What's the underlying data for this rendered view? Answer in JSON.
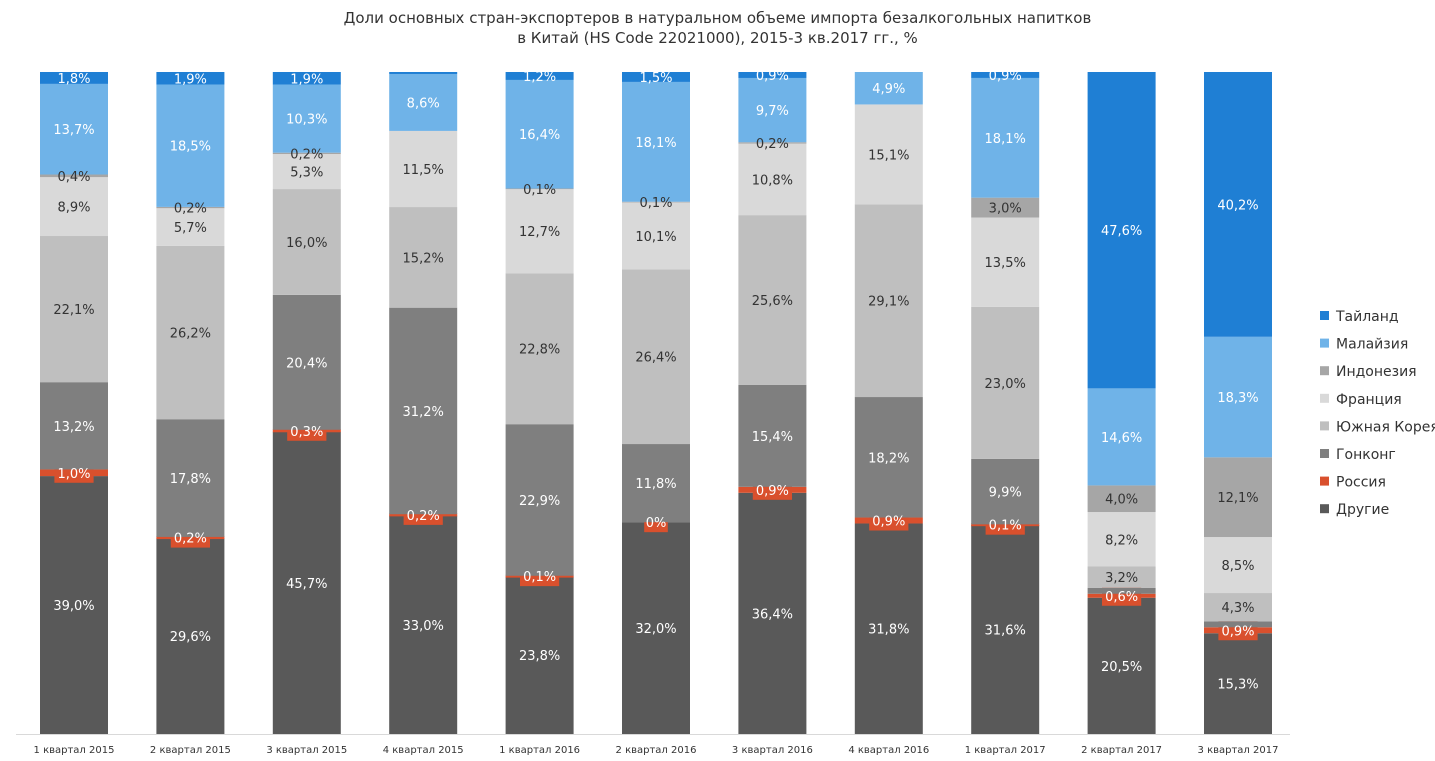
{
  "chart_data": {
    "type": "bar",
    "stacked": true,
    "title": "Доли основных стран-экспортеров в натуральном объеме импорта безалкогольных напитков",
    "subtitle": "в Китай (HS Code 22021000),  2015-3  кв.2017  гг., %",
    "categories": [
      "1 квартал  2015",
      "2 квартал  2015",
      "3 квартал  2015",
      "4 квартал  2015",
      "1 квартал  2016",
      "2 квартал  2016",
      "3 квартал  2016",
      "4 квартал  2016",
      "1 квартал  2017",
      "2 квартал  2017",
      "3 квартал  2017"
    ],
    "legend_position": "right",
    "ylim": [
      0,
      100
    ],
    "series": [
      {
        "name": "Другие",
        "color": "#595959",
        "values": [
          39.0,
          29.6,
          45.7,
          33.0,
          23.8,
          32.0,
          36.4,
          31.8,
          31.6,
          20.5,
          15.3
        ],
        "labels": [
          "39,0%",
          "29,6%",
          "45,7%",
          "33,0%",
          "23,8%",
          "32,0%",
          "36,4%",
          "31,8%",
          "31,6%",
          "20,5%",
          "15,3%"
        ]
      },
      {
        "name": "Россия",
        "color": "#D9502D",
        "values": [
          1.0,
          0.2,
          0.3,
          0.2,
          0.1,
          0.0,
          0.9,
          0.9,
          0.1,
          0.6,
          0.9
        ],
        "labels": [
          "1,0%",
          "0,2%",
          "0,3%",
          "0,2%",
          "0,1%",
          "0%",
          "0,9%",
          "0,9%",
          "0,1%",
          "0,6%",
          "0,9%"
        ]
      },
      {
        "name": "Гонконг",
        "color": "#7F7F7F",
        "values": [
          13.2,
          17.8,
          20.4,
          31.2,
          22.9,
          11.8,
          15.4,
          18.2,
          9.9,
          0.9,
          0.9
        ],
        "labels": [
          "13,2%",
          "17,8%",
          "20,4%",
          "31,2%",
          "22,9%",
          "11,8%",
          "15,4%",
          "18,2%",
          "9,9%",
          "",
          ""
        ]
      },
      {
        "name": "Южная Корея",
        "color": "#BFBFBF",
        "values": [
          22.1,
          26.2,
          16.0,
          15.2,
          22.8,
          26.4,
          25.6,
          29.1,
          23.0,
          3.2,
          4.3
        ],
        "labels": [
          "22,1%",
          "26,2%",
          "16,0%",
          "15,2%",
          "22,8%",
          "26,4%",
          "25,6%",
          "29,1%",
          "23,0%",
          "3,2%",
          "4,3%"
        ]
      },
      {
        "name": "Франция",
        "color": "#D9D9D9",
        "values": [
          8.9,
          5.7,
          5.3,
          11.5,
          12.7,
          10.1,
          10.8,
          15.1,
          13.5,
          8.2,
          8.5
        ],
        "labels": [
          "8,9%",
          "5,7%",
          "5,3%",
          "11,5%",
          "12,7%",
          "10,1%",
          "10,8%",
          "15,1%",
          "13,5%",
          "8,2%",
          "8,5%"
        ]
      },
      {
        "name": "Индонезия",
        "color": "#A6A6A6",
        "values": [
          0.4,
          0.2,
          0.2,
          0.0,
          0.1,
          0.1,
          0.2,
          0.0,
          3.0,
          4.0,
          12.1
        ],
        "labels": [
          "0,4%",
          "0,2%",
          "0,2%",
          "",
          "0,1%",
          "0,1%",
          "0,2%",
          "",
          "3,0%",
          "4,0%",
          "12,1%"
        ]
      },
      {
        "name": "Малайзия",
        "color": "#6FB3E8",
        "values": [
          13.7,
          18.5,
          10.3,
          8.6,
          16.4,
          18.1,
          9.7,
          4.9,
          18.1,
          14.6,
          18.3
        ],
        "labels": [
          "13,7%",
          "18,5%",
          "10,3%",
          "8,6%",
          "16,4%",
          "18,1%",
          "9,7%",
          "4,9%",
          "18,1%",
          "14,6%",
          "18,3%"
        ]
      },
      {
        "name": "Тайланд",
        "color": "#1F7FD4",
        "values": [
          1.8,
          1.9,
          1.9,
          0.3,
          1.2,
          1.5,
          0.9,
          0.0,
          0.9,
          47.6,
          40.2
        ],
        "labels": [
          "1,8%",
          "1,9%",
          "1,9%",
          "",
          "1,2%",
          "1,5%",
          "0,9%",
          "",
          "0,9%",
          "47,6%",
          "40,2%"
        ]
      }
    ]
  },
  "legend_order": [
    "Тайланд",
    "Малайзия",
    "Индонезия",
    "Франция",
    "Южная Корея",
    "Гонконг",
    "Россия",
    "Другие"
  ]
}
